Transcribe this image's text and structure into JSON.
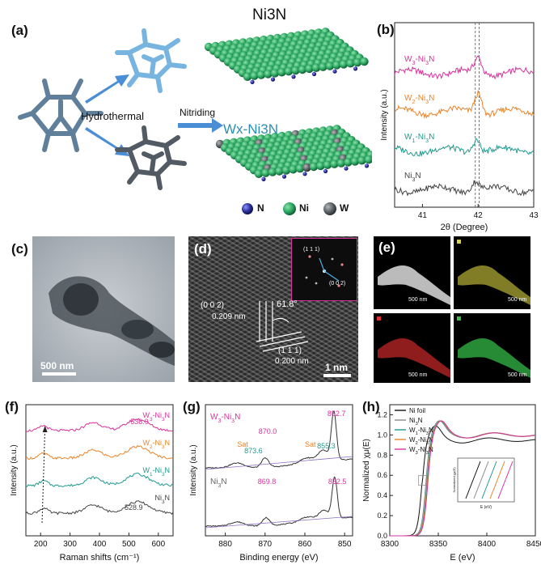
{
  "panel_a": {
    "label": "(a)",
    "ni3n_title": "Ni3N",
    "wx_title": "Wx-Ni3N",
    "hydrothermal": "Hydrothermal",
    "nitriding": "Nitriding",
    "legend": [
      {
        "label": "N",
        "color": "#2a2f9c"
      },
      {
        "label": "Ni",
        "color": "#2aa860"
      },
      {
        "label": "W",
        "color": "#555a5e"
      }
    ]
  },
  "panel_c": {
    "label": "(c)",
    "scalebar": "500 nm"
  },
  "panel_d": {
    "label": "(d)",
    "plane1": "(0 0 2)",
    "d1": "0.209 nm",
    "angle": "61.8°",
    "plane2": "(1 1 1)",
    "d2": "0.200 nm",
    "scalebar": "1 nm",
    "fft_label1": "(1 1 1)",
    "fft_label2": "(0 0 2)"
  },
  "panel_e": {
    "label": "(e)",
    "scalebar": "500 nm"
  },
  "chart_data": [
    {
      "id": "b",
      "label": "(b)",
      "type": "line",
      "xlabel": "2θ (Degree)",
      "ylabel": "Intensity (a.u.)",
      "xlim": [
        40.5,
        43
      ],
      "xticks": [
        "41",
        "42",
        "43"
      ],
      "reference_lines": [
        41.95,
        42.02
      ],
      "series": [
        {
          "name": "W3-Ni3N",
          "color": "#d6339c",
          "offset": 3.0,
          "peak": 42.0,
          "height": 0.55
        },
        {
          "name": "W2-Ni3N",
          "color": "#e8842a",
          "offset": 2.0,
          "peak": 42.0,
          "height": 0.75
        },
        {
          "name": "W1-Ni3N",
          "color": "#1f9a8e",
          "offset": 1.0,
          "peak": 41.97,
          "height": 0.5
        },
        {
          "name": "Ni3N",
          "color": "#444444",
          "offset": 0.0,
          "peak": 41.95,
          "height": 0.35
        }
      ]
    },
    {
      "id": "f",
      "label": "(f)",
      "type": "line",
      "xlabel": "Raman shifts (cm⁻¹)",
      "ylabel": "Intensity (a.u.)",
      "xlim": [
        150,
        650
      ],
      "xticks": [
        "200",
        "300",
        "400",
        "500",
        "600"
      ],
      "annotations": [
        "536.9",
        "528.9"
      ],
      "series": [
        {
          "name": "W3-Ni3N",
          "color": "#d6339c",
          "offset": 3.0
        },
        {
          "name": "W2-Ni3N",
          "color": "#e8842a",
          "offset": 2.0
        },
        {
          "name": "W1-Ni3N",
          "color": "#1f9a8e",
          "offset": 1.0
        },
        {
          "name": "Ni3N",
          "color": "#444444",
          "offset": 0.0
        }
      ]
    },
    {
      "id": "g",
      "label": "(g)",
      "type": "line",
      "xlabel": "Binding energy (eV)",
      "ylabel": "Intensity (a.u.)",
      "xlim": [
        885,
        848
      ],
      "xticks": [
        "880",
        "870",
        "860",
        "850"
      ],
      "top_series": "W3-Ni3N",
      "bottom_series": "Ni3N",
      "top_peaks": [
        "852.7",
        "870.0",
        "873.6",
        "855.3"
      ],
      "bottom_peaks": [
        "852.5",
        "869.8"
      ],
      "sat": "Sat"
    },
    {
      "id": "h",
      "label": "(h)",
      "type": "line",
      "xlabel": "E (eV)",
      "ylabel": "Normalized χμ(E)",
      "xlim": [
        8300,
        8450
      ],
      "ylim": [
        0,
        1.3
      ],
      "xticks": [
        "8300",
        "8350",
        "8400",
        "8450"
      ],
      "yticks": [
        "0.0",
        "0.2",
        "0.4",
        "0.6",
        "0.8",
        "1.0",
        "1.2"
      ],
      "inset_xlabel": "E (eV)",
      "inset_ylabel": "Normalized χμ(E)",
      "series": [
        {
          "name": "Ni foil",
          "color": "#111111",
          "edge": 8333
        },
        {
          "name": "Ni3N",
          "color": "#8a8a8a",
          "edge": 8337
        },
        {
          "name": "W1-Ni3N",
          "color": "#1f9a8e",
          "edge": 8338
        },
        {
          "name": "W2-Ni3N",
          "color": "#e8842a",
          "edge": 8338.5
        },
        {
          "name": "W3-Ni3N",
          "color": "#d6339c",
          "edge": 8339
        }
      ]
    }
  ]
}
